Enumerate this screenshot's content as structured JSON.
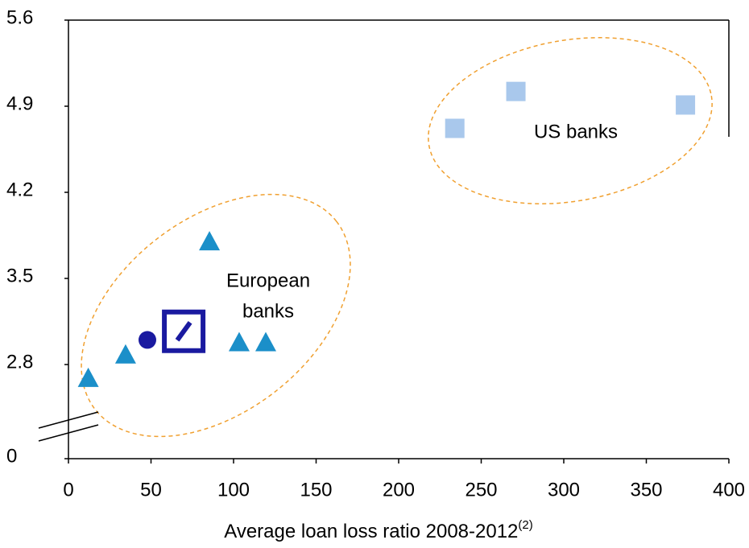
{
  "chart_data": {
    "type": "scatter",
    "xlabel": "Average loan loss ratio 2008-2012",
    "xlabel_note": "(2)",
    "xlim": [
      0,
      400
    ],
    "xticks": [
      0,
      50,
      100,
      150,
      200,
      250,
      300,
      350,
      400
    ],
    "ylim": [
      0,
      5.6
    ],
    "ybreak": [
      0,
      2.1
    ],
    "yticks": [
      0,
      2.8,
      3.5,
      4.2,
      4.9,
      5.6
    ],
    "series": [
      {
        "marker": "triangle",
        "color": "#1b8fc9",
        "x": [
          12,
          34.6,
          85.4,
          103.4,
          119.5
        ],
        "values": [
          2.69,
          2.88,
          3.8,
          2.98,
          2.98
        ]
      },
      {
        "marker": "circle",
        "color": "#1a1aa0",
        "x": [
          47.8
        ],
        "values": [
          3.0
        ]
      },
      {
        "marker": "logo",
        "color": "#1a1aa0",
        "x": [
          69.8
        ],
        "values": [
          3.07
        ]
      },
      {
        "marker": "square",
        "color": "#a9c8ec",
        "x": [
          234,
          271,
          373.7
        ],
        "values": [
          4.72,
          5.02,
          4.91
        ]
      }
    ],
    "annotations": [
      "US banks",
      "European",
      "banks"
    ]
  }
}
